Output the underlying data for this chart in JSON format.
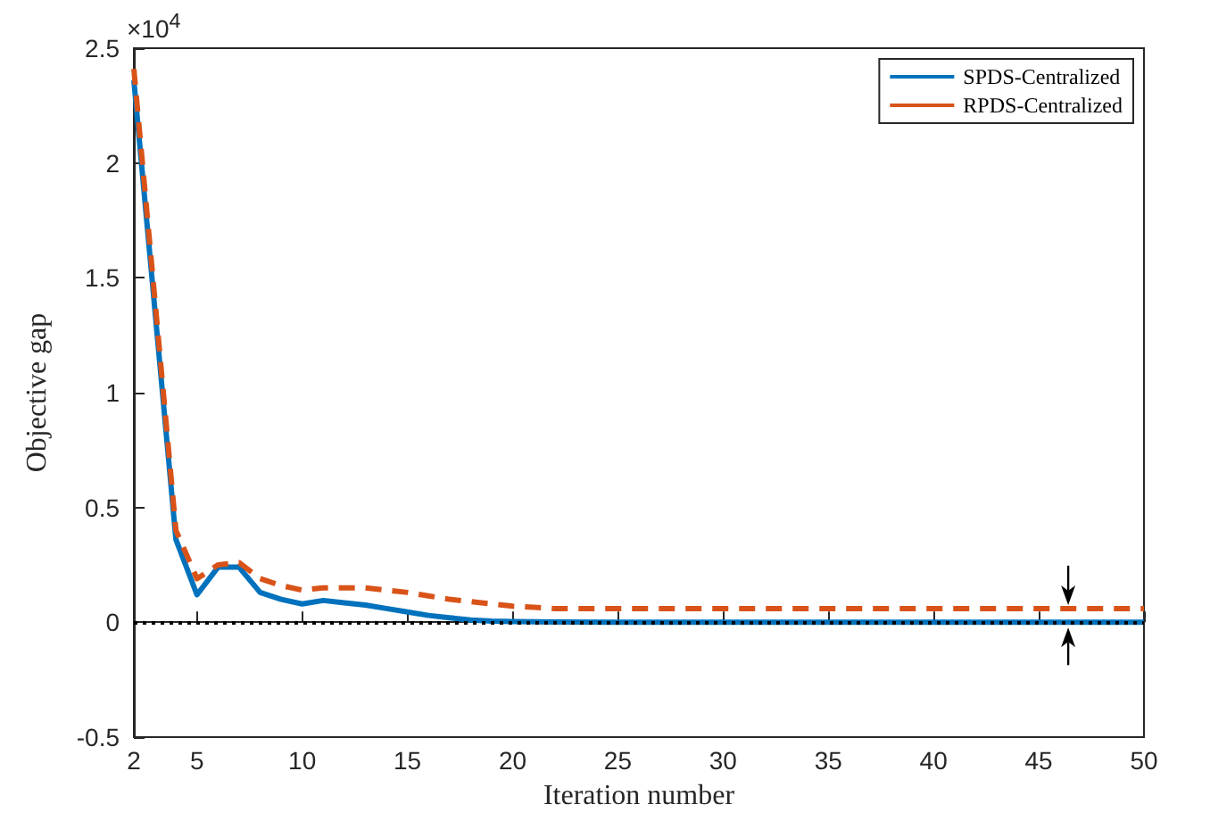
{
  "chart_data": {
    "type": "line",
    "xlabel": "Iteration number",
    "ylabel": "Objective gap",
    "annotations": [
      "×10$^{4}$"
    ],
    "x": [
      2,
      4,
      5,
      6,
      7,
      8,
      9,
      10,
      11,
      12,
      13,
      14,
      15,
      16,
      17,
      18,
      19,
      20,
      21,
      22,
      25,
      30,
      35,
      40,
      45,
      50
    ],
    "series": [
      {
        "name": "SPDS-Centralized",
        "color": "#0072bd",
        "line_style": "solid",
        "values": [
          2.36,
          0.36,
          0.12,
          0.24,
          0.24,
          0.13,
          0.1,
          0.08,
          0.095,
          0.085,
          0.075,
          0.06,
          0.045,
          0.03,
          0.02,
          0.01,
          0.005,
          0.003,
          0.002,
          0.001,
          0,
          0,
          0,
          0,
          0,
          0
        ]
      },
      {
        "name": "RPDS-Centralized",
        "color": "#d95319",
        "line_style": "dashed",
        "values": [
          2.41,
          0.4,
          0.19,
          0.25,
          0.26,
          0.19,
          0.16,
          0.14,
          0.15,
          0.15,
          0.15,
          0.14,
          0.13,
          0.115,
          0.1,
          0.09,
          0.08,
          0.07,
          0.065,
          0.06,
          0.06,
          0.06,
          0.06,
          0.06,
          0.06,
          0.06
        ]
      }
    ],
    "xlim": [
      2,
      50
    ],
    "xticks": [
      2,
      5,
      10,
      15,
      20,
      25,
      30,
      35,
      40,
      45,
      50
    ],
    "ylim": [
      -0.5,
      2.5
    ],
    "yticks": [
      -0.5,
      0,
      0.5,
      1,
      1.5,
      2,
      2.5
    ],
    "ref_lines": [
      {
        "axis": "y",
        "value": 0,
        "color": "#000000",
        "line_style": "dotted"
      }
    ],
    "legend": "top right",
    "grid": false,
    "marker": "none"
  }
}
